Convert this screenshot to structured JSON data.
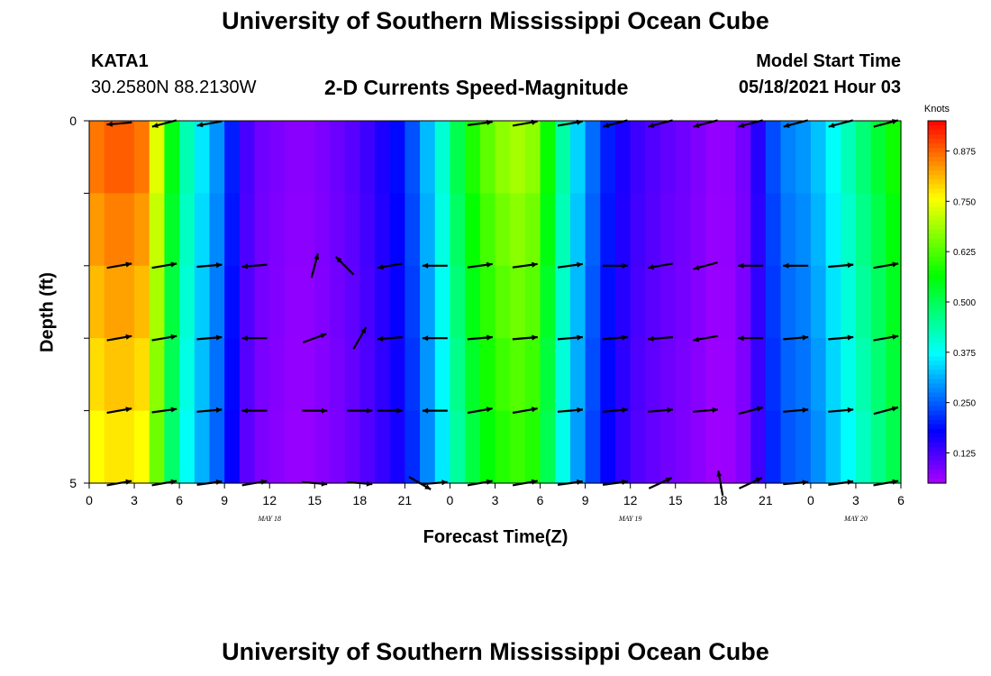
{
  "page_title": "University of Southern Mississippi Ocean Cube",
  "footer_title": "University of Southern Mississippi Ocean Cube",
  "station": {
    "id": "KATA1",
    "coords": "30.2580N  88.2130W"
  },
  "model": {
    "label": "Model Start Time",
    "time": "05/18/2021 Hour 03"
  },
  "chart_data": {
    "type": "heatmap",
    "title": "2-D Currents Speed-Magnitude",
    "xlabel": "Forecast Time(Z)",
    "ylabel": "Depth (ft)",
    "x_tick_labels": [
      "0",
      "3",
      "6",
      "9",
      "12",
      "15",
      "18",
      "21",
      "0",
      "3",
      "6",
      "9",
      "12",
      "15",
      "18",
      "21",
      "0",
      "3",
      "6"
    ],
    "date_labels": [
      {
        "label": "MAY 18",
        "x_index": 4
      },
      {
        "label": "MAY 19",
        "x_index": 12
      },
      {
        "label": "MAY 20",
        "x_index": 17
      }
    ],
    "y_tick_labels": [
      "0",
      "5"
    ],
    "ylim": [
      0,
      5
    ],
    "colorbar": {
      "unit_label": "Knots",
      "tick_labels": [
        "0.875",
        "0.750",
        "0.625",
        "0.500",
        "0.375",
        "0.250",
        "0.125"
      ],
      "ticks": [
        0.875,
        0.75,
        0.625,
        0.5,
        0.375,
        0.25,
        0.125
      ],
      "range": [
        0.05,
        0.95
      ]
    },
    "speed_profile_knots": [
      {
        "hour": 0,
        "speed": 0.74
      },
      {
        "hour": 0.5,
        "speed": 0.86
      },
      {
        "hour": 2,
        "speed": 0.89
      },
      {
        "hour": 4,
        "speed": 0.85
      },
      {
        "hour": 5,
        "speed": 0.62
      },
      {
        "hour": 6,
        "speed": 0.48
      },
      {
        "hour": 7,
        "speed": 0.38
      },
      {
        "hour": 8,
        "speed": 0.33
      },
      {
        "hour": 9,
        "speed": 0.25
      },
      {
        "hour": 10,
        "speed": 0.15
      },
      {
        "hour": 11,
        "speed": 0.1
      },
      {
        "hour": 12,
        "speed": 0.09
      },
      {
        "hour": 14,
        "speed": 0.07
      },
      {
        "hour": 16,
        "speed": 0.09
      },
      {
        "hour": 18,
        "speed": 0.12
      },
      {
        "hour": 20,
        "speed": 0.17
      },
      {
        "hour": 21,
        "speed": 0.2
      },
      {
        "hour": 22,
        "speed": 0.28
      },
      {
        "hour": 23,
        "speed": 0.36
      },
      {
        "hour": 24,
        "speed": 0.45
      },
      {
        "hour": 25,
        "speed": 0.56
      },
      {
        "hour": 27,
        "speed": 0.66
      },
      {
        "hour": 29,
        "speed": 0.7
      },
      {
        "hour": 30,
        "speed": 0.64
      },
      {
        "hour": 31,
        "speed": 0.5
      },
      {
        "hour": 32,
        "speed": 0.38
      },
      {
        "hour": 33,
        "speed": 0.3
      },
      {
        "hour": 34,
        "speed": 0.22
      },
      {
        "hour": 36,
        "speed": 0.14
      },
      {
        "hour": 38,
        "speed": 0.11
      },
      {
        "hour": 40,
        "speed": 0.09
      },
      {
        "hour": 42,
        "speed": 0.06
      },
      {
        "hour": 44,
        "speed": 0.1
      },
      {
        "hour": 45,
        "speed": 0.2
      },
      {
        "hour": 46,
        "speed": 0.27
      },
      {
        "hour": 48,
        "speed": 0.3
      },
      {
        "hour": 50,
        "speed": 0.4
      },
      {
        "hour": 52,
        "speed": 0.5
      },
      {
        "hour": 54,
        "speed": 0.6
      }
    ],
    "depth_rows": 5,
    "vector_rows": [
      {
        "depth_row": 0,
        "arrows": [
          {
            "hour": 2,
            "deg": 185
          },
          {
            "hour": 5,
            "deg": 195
          },
          {
            "hour": 8,
            "deg": 190
          },
          {
            "hour": 26,
            "deg": 8
          },
          {
            "hour": 29,
            "deg": 10
          },
          {
            "hour": 32,
            "deg": 10
          },
          {
            "hour": 35,
            "deg": 195
          },
          {
            "hour": 38,
            "deg": 195
          },
          {
            "hour": 41,
            "deg": 195
          },
          {
            "hour": 44,
            "deg": 195
          },
          {
            "hour": 47,
            "deg": 195
          },
          {
            "hour": 50,
            "deg": 195
          },
          {
            "hour": 53,
            "deg": 15
          }
        ]
      },
      {
        "depth_row": 1,
        "arrows": [
          {
            "hour": 2,
            "deg": 10
          },
          {
            "hour": 5,
            "deg": 10
          },
          {
            "hour": 8,
            "deg": 5
          },
          {
            "hour": 11,
            "deg": 185
          },
          {
            "hour": 15,
            "deg": 75
          },
          {
            "hour": 17,
            "deg": 135
          },
          {
            "hour": 20,
            "deg": 190
          },
          {
            "hour": 23,
            "deg": 180
          },
          {
            "hour": 26,
            "deg": 8
          },
          {
            "hour": 29,
            "deg": 8
          },
          {
            "hour": 32,
            "deg": 8
          },
          {
            "hour": 35,
            "deg": 0
          },
          {
            "hour": 38,
            "deg": 190
          },
          {
            "hour": 41,
            "deg": 195
          },
          {
            "hour": 44,
            "deg": 180
          },
          {
            "hour": 47,
            "deg": 180
          },
          {
            "hour": 50,
            "deg": 5
          },
          {
            "hour": 53,
            "deg": 10
          }
        ]
      },
      {
        "depth_row": 2,
        "arrows": [
          {
            "hour": 2,
            "deg": 10
          },
          {
            "hour": 5,
            "deg": 10
          },
          {
            "hour": 8,
            "deg": 5
          },
          {
            "hour": 11,
            "deg": 180
          },
          {
            "hour": 15,
            "deg": 20
          },
          {
            "hour": 18,
            "deg": 60
          },
          {
            "hour": 20,
            "deg": 185
          },
          {
            "hour": 23,
            "deg": 180
          },
          {
            "hour": 26,
            "deg": 5
          },
          {
            "hour": 29,
            "deg": 5
          },
          {
            "hour": 32,
            "deg": 5
          },
          {
            "hour": 35,
            "deg": 5
          },
          {
            "hour": 38,
            "deg": 185
          },
          {
            "hour": 41,
            "deg": 190
          },
          {
            "hour": 44,
            "deg": 180
          },
          {
            "hour": 47,
            "deg": 5
          },
          {
            "hour": 50,
            "deg": 5
          },
          {
            "hour": 53,
            "deg": 10
          }
        ]
      },
      {
        "depth_row": 3,
        "arrows": [
          {
            "hour": 2,
            "deg": 10
          },
          {
            "hour": 5,
            "deg": 8
          },
          {
            "hour": 8,
            "deg": 5
          },
          {
            "hour": 11,
            "deg": 180
          },
          {
            "hour": 15,
            "deg": 0
          },
          {
            "hour": 18,
            "deg": 0
          },
          {
            "hour": 20,
            "deg": 0
          },
          {
            "hour": 23,
            "deg": 180
          },
          {
            "hour": 26,
            "deg": 10
          },
          {
            "hour": 29,
            "deg": 10
          },
          {
            "hour": 32,
            "deg": 5
          },
          {
            "hour": 35,
            "deg": 5
          },
          {
            "hour": 38,
            "deg": 5
          },
          {
            "hour": 41,
            "deg": 5
          },
          {
            "hour": 44,
            "deg": 15
          },
          {
            "hour": 47,
            "deg": 5
          },
          {
            "hour": 50,
            "deg": 5
          },
          {
            "hour": 53,
            "deg": 15
          }
        ]
      },
      {
        "depth_row": 4,
        "arrows": [
          {
            "hour": 2,
            "deg": 10
          },
          {
            "hour": 5,
            "deg": 10
          },
          {
            "hour": 8,
            "deg": 8
          },
          {
            "hour": 11,
            "deg": 10
          },
          {
            "hour": 15,
            "deg": 355
          },
          {
            "hour": 18,
            "deg": 355
          },
          {
            "hour": 22,
            "deg": 330
          },
          {
            "hour": 23,
            "deg": 5
          },
          {
            "hour": 26,
            "deg": 10
          },
          {
            "hour": 29,
            "deg": 10
          },
          {
            "hour": 32,
            "deg": 8
          },
          {
            "hour": 35,
            "deg": 8
          },
          {
            "hour": 38,
            "deg": 25
          },
          {
            "hour": 42,
            "deg": 100
          },
          {
            "hour": 44,
            "deg": 25
          },
          {
            "hour": 47,
            "deg": 5
          },
          {
            "hour": 50,
            "deg": 8
          },
          {
            "hour": 53,
            "deg": 10
          }
        ]
      }
    ]
  }
}
